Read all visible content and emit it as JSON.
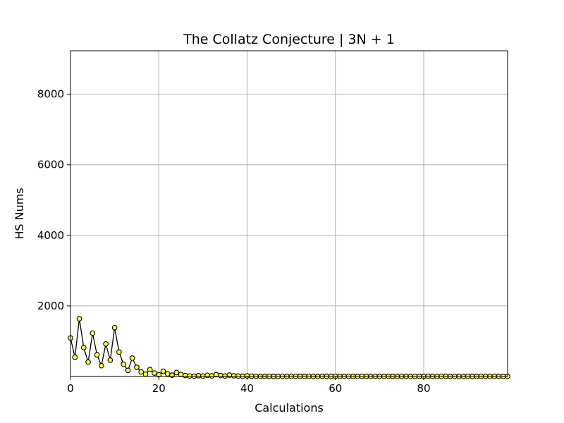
{
  "chart_data": {
    "type": "line",
    "title": "The Collatz Conjecture | 3N + 1",
    "xlabel": "Calculations",
    "ylabel": "HS Nums",
    "xlim": [
      0,
      99
    ],
    "ylim": [
      0,
      9232
    ],
    "grid": true,
    "x_ticks": [
      0,
      20,
      40,
      60,
      80
    ],
    "y_ticks": [
      2000,
      4000,
      6000,
      8000
    ],
    "colors": {
      "line": "#000000",
      "marker_fill": "#ffff33",
      "marker_edge": "#000000",
      "grid": "#b0b0b0"
    },
    "series": [
      {
        "marker": "circle",
        "x": [
          0,
          1,
          2,
          3,
          4,
          5,
          6,
          7,
          8,
          9,
          10,
          11,
          12,
          13,
          14,
          15,
          16,
          17,
          18,
          19,
          20,
          21,
          22,
          23,
          24,
          25,
          26,
          27,
          28,
          29,
          30,
          31,
          32,
          33,
          34,
          35,
          36,
          37,
          38,
          39,
          40,
          41,
          42,
          43,
          44,
          45,
          46,
          47,
          48,
          49,
          50,
          51,
          52,
          53,
          54,
          55,
          56,
          57,
          58,
          59,
          60,
          61,
          62,
          63,
          64,
          65,
          66,
          67,
          68,
          69,
          70,
          71,
          72,
          73,
          74,
          75,
          76,
          77,
          78,
          79,
          80,
          81,
          82,
          83,
          84,
          85,
          86,
          87,
          88,
          89,
          90,
          91,
          92,
          93,
          94,
          95,
          96,
          97,
          98,
          99
        ],
        "values": [
          1090,
          545,
          1636,
          818,
          409,
          1228,
          614,
          307,
          922,
          461,
          1384,
          692,
          346,
          173,
          520,
          260,
          130,
          65,
          196,
          98,
          49,
          148,
          74,
          37,
          112,
          56,
          28,
          14,
          7,
          22,
          11,
          34,
          17,
          52,
          26,
          13,
          40,
          20,
          10,
          5,
          16,
          8,
          4,
          2,
          1,
          4,
          2,
          1,
          4,
          2,
          1,
          4,
          2,
          1,
          4,
          2,
          1,
          4,
          2,
          1,
          4,
          2,
          1,
          4,
          2,
          1,
          4,
          2,
          1,
          4,
          2,
          1,
          4,
          2,
          1,
          4,
          2,
          1,
          4,
          2,
          1,
          4,
          2,
          1,
          4,
          2,
          1,
          4,
          2,
          1,
          4,
          2,
          1,
          4,
          2,
          1,
          4,
          2,
          1,
          4
        ]
      }
    ]
  }
}
